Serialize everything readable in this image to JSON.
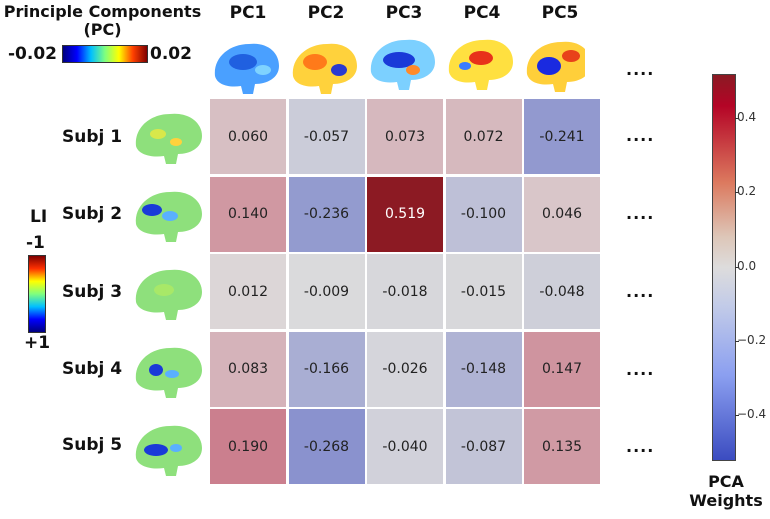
{
  "header": {
    "title_line1": "Principle Components",
    "title_line2": "(PC)",
    "pc_scale_min": "-0.02",
    "pc_scale_max": "0.02"
  },
  "side": {
    "li_label": "LI",
    "li_top": "-1",
    "li_bottom": "+1"
  },
  "ellipsis": "....",
  "colorbar": {
    "title_line1": "PCA",
    "title_line2": "Weights",
    "ticks": [
      "0.4",
      "0.2",
      "0.0",
      "−0.2",
      "−0.4"
    ]
  },
  "colors": {
    "negative": "#3b4cc0",
    "neutral": "#dddcdc",
    "positive": "#b40426",
    "max": "#8b1a23"
  },
  "chart_data": {
    "type": "heatmap",
    "title": "PCA Weights",
    "columns": [
      "PC1",
      "PC2",
      "PC3",
      "PC4",
      "PC5"
    ],
    "rows": [
      "Subj 1",
      "Subj 2",
      "Subj 3",
      "Subj 4",
      "Subj 5"
    ],
    "values": [
      [
        0.06,
        -0.057,
        0.073,
        0.072,
        -0.241
      ],
      [
        0.14,
        -0.236,
        0.519,
        -0.1,
        0.046
      ],
      [
        0.012,
        -0.009,
        -0.018,
        -0.015,
        -0.048
      ],
      [
        0.083,
        -0.166,
        -0.026,
        -0.148,
        0.147
      ],
      [
        0.19,
        -0.268,
        -0.04,
        -0.087,
        0.135
      ]
    ],
    "labels": [
      [
        "0.060",
        "-0.057",
        "0.073",
        "0.072",
        "-0.241"
      ],
      [
        "0.140",
        "-0.236",
        "0.519",
        "-0.100",
        "0.046"
      ],
      [
        "0.012",
        "-0.009",
        "-0.018",
        "-0.015",
        "-0.048"
      ],
      [
        "0.083",
        "-0.166",
        "-0.026",
        "-0.148",
        "0.147"
      ],
      [
        "0.190",
        "-0.268",
        "-0.040",
        "-0.087",
        "0.135"
      ]
    ],
    "colorbar_range": [
      -0.52,
      0.52
    ],
    "colormap": "coolwarm"
  }
}
